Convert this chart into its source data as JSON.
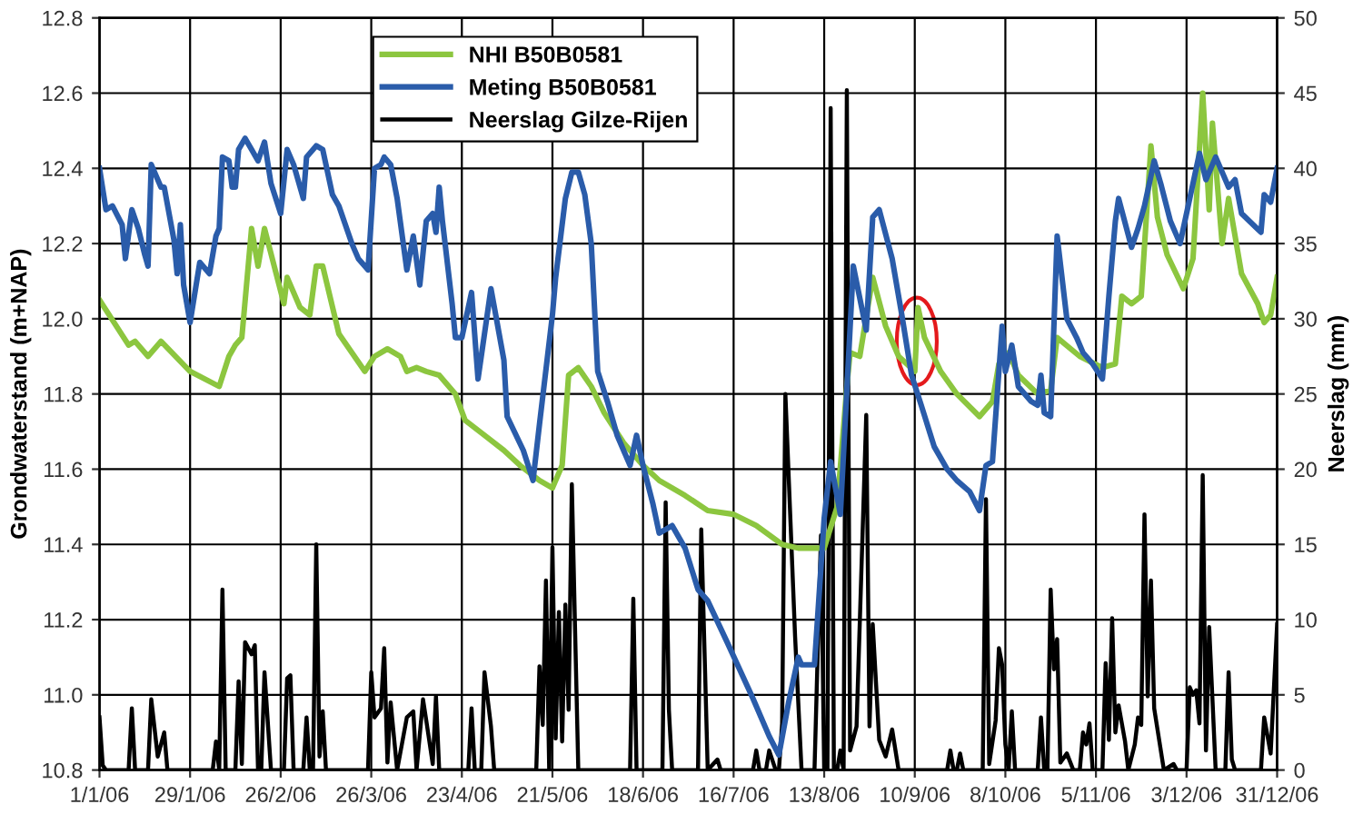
{
  "chart_data": {
    "type": "line",
    "ylabel": "Grondwaterstand (m+NAP)",
    "y2label": "Neerslag (mm)",
    "xlim": [
      "2006-01-01",
      "2006-12-31"
    ],
    "xticks": [
      {
        "value": "2006-01-01",
        "label": "1/1/06"
      },
      {
        "value": "2006-01-29",
        "label": "29/1/06"
      },
      {
        "value": "2006-02-26",
        "label": "26/2/06"
      },
      {
        "value": "2006-03-26",
        "label": "26/3/06"
      },
      {
        "value": "2006-04-23",
        "label": "23/4/06"
      },
      {
        "value": "2006-05-21",
        "label": "21/5/06"
      },
      {
        "value": "2006-06-18",
        "label": "18/6/06"
      },
      {
        "value": "2006-07-16",
        "label": "16/7/06"
      },
      {
        "value": "2006-08-13",
        "label": "13/8/06"
      },
      {
        "value": "2006-09-10",
        "label": "10/9/06"
      },
      {
        "value": "2006-10-08",
        "label": "8/10/06"
      },
      {
        "value": "2006-11-05",
        "label": "5/11/06"
      },
      {
        "value": "2006-12-03",
        "label": "3/12/06"
      },
      {
        "value": "2006-12-31",
        "label": "31/12/06"
      }
    ],
    "ylim": [
      10.8,
      12.8
    ],
    "yticks": [
      10.8,
      {
        "value": 11,
        "label": "11.0"
      },
      11.2,
      11.4,
      11.6,
      11.8,
      {
        "value": 12,
        "label": "12.0"
      },
      12.2,
      12.4,
      12.6,
      12.8
    ],
    "y2lim": [
      0,
      50
    ],
    "y2ticks": [
      0,
      5,
      10,
      15,
      20,
      25,
      30,
      35,
      40,
      45,
      50
    ],
    "grid": true,
    "legend": "top",
    "marker": "none",
    "line_style": "solid",
    "series": [
      {
        "name": "NHI B50B0581",
        "color": "#8cc63f",
        "x": [
          "2006-01-01",
          "2006-01-10",
          "2006-01-12",
          "2006-01-16",
          "2006-01-20",
          "2006-01-29",
          "2006-02-07",
          "2006-02-10",
          "2006-02-12",
          "2006-02-14",
          "2006-02-17",
          "2006-02-19",
          "2006-02-21",
          "2006-02-27",
          "2006-02-28",
          "2006-03-04",
          "2006-03-07",
          "2006-03-09",
          "2006-03-11",
          "2006-03-16",
          "2006-03-24",
          "2006-03-27",
          "2006-03-31",
          "2006-04-04",
          "2006-04-06",
          "2006-04-09",
          "2006-04-12",
          "2006-04-16",
          "2006-04-21",
          "2006-04-24",
          "2006-04-30",
          "2006-05-06",
          "2006-05-11",
          "2006-05-17",
          "2006-05-21",
          "2006-05-24",
          "2006-05-26",
          "2006-05-29",
          "2006-06-02",
          "2006-06-06",
          "2006-06-12",
          "2006-06-18",
          "2006-06-23",
          "2006-07-01",
          "2006-07-08",
          "2006-07-16",
          "2006-07-23",
          "2006-07-31",
          "2006-08-05",
          "2006-08-13",
          "2006-08-17",
          "2006-08-20",
          "2006-08-21",
          "2006-08-24",
          "2006-08-28",
          "2006-09-01",
          "2006-09-05",
          "2006-09-10",
          "2006-09-11",
          "2006-09-13",
          "2006-09-18",
          "2006-09-23",
          "2006-09-30",
          "2006-10-04",
          "2006-10-06",
          "2006-10-09",
          "2006-10-12",
          "2006-10-18",
          "2006-10-22",
          "2006-10-24",
          "2006-10-31",
          "2006-11-07",
          "2006-11-11",
          "2006-11-13",
          "2006-11-16",
          "2006-11-19",
          "2006-11-22",
          "2006-11-24",
          "2006-11-27",
          "2006-12-02",
          "2006-12-05",
          "2006-12-08",
          "2006-12-10",
          "2006-12-11",
          "2006-12-14",
          "2006-12-16",
          "2006-12-20",
          "2006-12-25",
          "2006-12-27",
          "2006-12-29",
          "2006-12-31"
        ],
        "values": [
          12.05,
          11.93,
          11.94,
          11.9,
          11.94,
          11.86,
          11.82,
          11.9,
          11.93,
          11.95,
          12.24,
          12.14,
          12.24,
          12.04,
          12.11,
          12.03,
          12.01,
          12.14,
          12.14,
          11.96,
          11.86,
          11.9,
          11.92,
          11.9,
          11.86,
          11.87,
          11.86,
          11.85,
          11.8,
          11.73,
          11.69,
          11.65,
          11.61,
          11.57,
          11.55,
          11.61,
          11.85,
          11.87,
          11.82,
          11.75,
          11.67,
          11.61,
          11.57,
          11.53,
          11.49,
          11.48,
          11.45,
          11.4,
          11.39,
          11.39,
          11.5,
          11.82,
          11.91,
          11.9,
          12.11,
          11.98,
          11.9,
          11.86,
          12.03,
          11.95,
          11.86,
          11.8,
          11.74,
          11.78,
          11.88,
          11.91,
          11.85,
          11.8,
          11.81,
          11.95,
          11.9,
          11.87,
          11.88,
          12.06,
          12.04,
          12.06,
          12.46,
          12.27,
          12.17,
          12.08,
          12.16,
          12.6,
          12.29,
          12.52,
          12.2,
          12.32,
          12.12,
          12.04,
          11.99,
          12.01,
          12.11
        ]
      },
      {
        "name": "Meting B50B0581",
        "color": "#2a5caa",
        "x": [
          "2006-01-01",
          "2006-01-03",
          "2006-01-05",
          "2006-01-08",
          "2006-01-09",
          "2006-01-11",
          "2006-01-13",
          "2006-01-15",
          "2006-01-16",
          "2006-01-17",
          "2006-01-20",
          "2006-01-21",
          "2006-01-24",
          "2006-01-25",
          "2006-01-26",
          "2006-01-27",
          "2006-01-29",
          "2006-02-01",
          "2006-02-04",
          "2006-02-06",
          "2006-02-07",
          "2006-02-08",
          "2006-02-10",
          "2006-02-11",
          "2006-02-12",
          "2006-02-13",
          "2006-02-15",
          "2006-02-17",
          "2006-02-19",
          "2006-02-21",
          "2006-02-23",
          "2006-02-26",
          "2006-02-28",
          "2006-03-02",
          "2006-03-05",
          "2006-03-06",
          "2006-03-09",
          "2006-03-11",
          "2006-03-14",
          "2006-03-16",
          "2006-03-20",
          "2006-03-22",
          "2006-03-25",
          "2006-03-27",
          "2006-03-29",
          "2006-03-30",
          "2006-04-01",
          "2006-04-03",
          "2006-04-06",
          "2006-04-08",
          "2006-04-10",
          "2006-04-12",
          "2006-04-14",
          "2006-04-15",
          "2006-04-16",
          "2006-04-17",
          "2006-04-20",
          "2006-04-21",
          "2006-04-23",
          "2006-04-26",
          "2006-04-28",
          "2006-05-02",
          "2006-05-06",
          "2006-05-07",
          "2006-05-12",
          "2006-05-15",
          "2006-05-17",
          "2006-05-21",
          "2006-05-22",
          "2006-05-25",
          "2006-05-27",
          "2006-05-29",
          "2006-05-31",
          "2006-06-02",
          "2006-06-04",
          "2006-06-07",
          "2006-06-10",
          "2006-06-14",
          "2006-06-16",
          "2006-06-18",
          "2006-06-21",
          "2006-06-23",
          "2006-06-27",
          "2006-07-01",
          "2006-07-05",
          "2006-07-08",
          "2006-07-14",
          "2006-07-22",
          "2006-07-27",
          "2006-07-30",
          "2006-08-02",
          "2006-08-05",
          "2006-08-06",
          "2006-08-10",
          "2006-08-13",
          "2006-08-15",
          "2006-08-18",
          "2006-08-22",
          "2006-08-26",
          "2006-08-28",
          "2006-08-30",
          "2006-09-03",
          "2006-09-06",
          "2006-09-09",
          "2006-09-12",
          "2006-09-16",
          "2006-09-20",
          "2006-09-23",
          "2006-09-27",
          "2006-09-30",
          "2006-10-02",
          "2006-10-04",
          "2006-10-07",
          "2006-10-08",
          "2006-10-10",
          "2006-10-12",
          "2006-10-16",
          "2006-10-18",
          "2006-10-19",
          "2006-10-20",
          "2006-10-22",
          "2006-10-24",
          "2006-10-27",
          "2006-10-30",
          "2006-11-01",
          "2006-11-04",
          "2006-11-07",
          "2006-11-09",
          "2006-11-11",
          "2006-11-12",
          "2006-11-16",
          "2006-11-18",
          "2006-11-20",
          "2006-11-23",
          "2006-11-25",
          "2006-11-28",
          "2006-12-01",
          "2006-12-04",
          "2006-12-07",
          "2006-12-09",
          "2006-12-12",
          "2006-12-16",
          "2006-12-18",
          "2006-12-20",
          "2006-12-26",
          "2006-12-27",
          "2006-12-29",
          "2006-12-31"
        ],
        "values": [
          12.4,
          12.29,
          12.3,
          12.25,
          12.16,
          12.29,
          12.24,
          12.17,
          12.14,
          12.41,
          12.35,
          12.35,
          12.21,
          12.12,
          12.25,
          12.09,
          11.99,
          12.15,
          12.12,
          12.22,
          12.24,
          12.43,
          12.42,
          12.35,
          12.35,
          12.45,
          12.48,
          12.45,
          12.42,
          12.47,
          12.36,
          12.28,
          12.45,
          12.41,
          12.32,
          12.43,
          12.46,
          12.45,
          12.33,
          12.3,
          12.2,
          12.16,
          12.13,
          12.4,
          12.41,
          12.43,
          12.41,
          12.32,
          12.13,
          12.22,
          12.09,
          12.26,
          12.28,
          12.23,
          12.35,
          12.26,
          12.04,
          11.95,
          11.95,
          12.07,
          11.84,
          12.08,
          11.89,
          11.74,
          11.65,
          11.57,
          11.72,
          12.01,
          12.11,
          12.32,
          12.39,
          12.39,
          12.33,
          12.2,
          11.86,
          11.78,
          11.69,
          11.61,
          11.69,
          11.61,
          11.51,
          11.43,
          11.45,
          11.39,
          11.28,
          11.25,
          11.14,
          10.99,
          10.89,
          10.84,
          10.98,
          11.1,
          11.08,
          11.08,
          11.47,
          11.62,
          11.48,
          12.14,
          11.97,
          12.27,
          12.29,
          12.16,
          12.01,
          11.85,
          11.77,
          11.66,
          11.6,
          11.57,
          11.54,
          11.49,
          11.61,
          11.62,
          11.98,
          11.86,
          11.93,
          11.82,
          11.78,
          11.77,
          11.85,
          11.75,
          11.74,
          12.22,
          12.0,
          11.95,
          11.91,
          11.88,
          11.84,
          12.06,
          12.26,
          12.32,
          12.19,
          12.24,
          12.3,
          12.42,
          12.36,
          12.26,
          12.2,
          12.32,
          12.44,
          12.37,
          12.43,
          12.35,
          12.37,
          12.28,
          12.23,
          12.33,
          12.31,
          12.4
        ]
      },
      {
        "name": "Neerslag Gilze-Rijen",
        "color": "#000000",
        "axis": "y2",
        "x": [
          "2006-01-01",
          "2006-01-02",
          "2006-01-03",
          "2006-01-10",
          "2006-01-11",
          "2006-01-12",
          "2006-01-16",
          "2006-01-17",
          "2006-01-19",
          "2006-01-21",
          "2006-01-22",
          "2006-02-05",
          "2006-02-06",
          "2006-02-07",
          "2006-02-08",
          "2006-02-09",
          "2006-02-12",
          "2006-02-13",
          "2006-02-14",
          "2006-02-15",
          "2006-02-17",
          "2006-02-18",
          "2006-02-19",
          "2006-02-20",
          "2006-02-21",
          "2006-02-23",
          "2006-02-27",
          "2006-02-28",
          "2006-03-01",
          "2006-03-02",
          "2006-03-05",
          "2006-03-06",
          "2006-03-07",
          "2006-03-08",
          "2006-03-09",
          "2006-03-10",
          "2006-03-11",
          "2006-03-12",
          "2006-03-25",
          "2006-03-26",
          "2006-03-27",
          "2006-03-29",
          "2006-03-30",
          "2006-03-31",
          "2006-04-01",
          "2006-04-03",
          "2006-04-06",
          "2006-04-08",
          "2006-04-09",
          "2006-04-11",
          "2006-04-12",
          "2006-04-14",
          "2006-04-15",
          "2006-04-16",
          "2006-04-25",
          "2006-04-26",
          "2006-04-27",
          "2006-04-29",
          "2006-04-30",
          "2006-05-02",
          "2006-05-03",
          "2006-05-16",
          "2006-05-17",
          "2006-05-18",
          "2006-05-19",
          "2006-05-20",
          "2006-05-21",
          "2006-05-22",
          "2006-05-23",
          "2006-05-24",
          "2006-05-25",
          "2006-05-26",
          "2006-05-27",
          "2006-05-28",
          "2006-05-29",
          "2006-06-14",
          "2006-06-15",
          "2006-06-16",
          "2006-06-24",
          "2006-06-25",
          "2006-06-26",
          "2006-06-27",
          "2006-07-05",
          "2006-07-06",
          "2006-07-08",
          "2006-07-11",
          "2006-07-12",
          "2006-07-22",
          "2006-07-23",
          "2006-07-24",
          "2006-07-26",
          "2006-07-27",
          "2006-07-29",
          "2006-07-30",
          "2006-07-31",
          "2006-08-01",
          "2006-08-04",
          "2006-08-06",
          "2006-08-10",
          "2006-08-12",
          "2006-08-13",
          "2006-08-14",
          "2006-08-15",
          "2006-08-16",
          "2006-08-17",
          "2006-08-18",
          "2006-08-19",
          "2006-08-20",
          "2006-08-21",
          "2006-08-23",
          "2006-08-26",
          "2006-08-27",
          "2006-08-28",
          "2006-08-30",
          "2006-09-01",
          "2006-09-03",
          "2006-09-05",
          "2006-09-20",
          "2006-09-21",
          "2006-09-22",
          "2006-09-23",
          "2006-09-24",
          "2006-09-25",
          "2006-10-01",
          "2006-10-02",
          "2006-10-03",
          "2006-10-05",
          "2006-10-06",
          "2006-10-07",
          "2006-10-08",
          "2006-10-09",
          "2006-10-10",
          "2006-10-11",
          "2006-10-18",
          "2006-10-19",
          "2006-10-20",
          "2006-10-21",
          "2006-10-22",
          "2006-10-23",
          "2006-10-24",
          "2006-10-25",
          "2006-10-27",
          "2006-10-29",
          "2006-10-31",
          "2006-11-01",
          "2006-11-02",
          "2006-11-03",
          "2006-11-04",
          "2006-11-07",
          "2006-11-08",
          "2006-11-09",
          "2006-11-10",
          "2006-11-11",
          "2006-11-12",
          "2006-11-14",
          "2006-11-15",
          "2006-11-17",
          "2006-11-18",
          "2006-11-19",
          "2006-11-20",
          "2006-11-21",
          "2006-11-22",
          "2006-11-23",
          "2006-11-26",
          "2006-11-29",
          "2006-11-30",
          "2006-12-03",
          "2006-12-04",
          "2006-12-05",
          "2006-12-06",
          "2006-12-07",
          "2006-12-08",
          "2006-12-09",
          "2006-12-10",
          "2006-12-12",
          "2006-12-15",
          "2006-12-16",
          "2006-12-17",
          "2006-12-18",
          "2006-12-26",
          "2006-12-27",
          "2006-12-29",
          "2006-12-31"
        ],
        "values": [
          3.5,
          0.3,
          0,
          0,
          4.1,
          0,
          0,
          4.7,
          0.9,
          2.5,
          0,
          0,
          1.9,
          0,
          12.0,
          0,
          0,
          5.9,
          0.4,
          8.5,
          7.7,
          8.3,
          0,
          0,
          6.5,
          0,
          0,
          6.1,
          6.3,
          0,
          0,
          3.5,
          0,
          0,
          15.0,
          0.9,
          3.9,
          0,
          0,
          6.5,
          3.5,
          4.1,
          8.1,
          0.5,
          4.5,
          0,
          3.5,
          3.9,
          0,
          4.7,
          3.3,
          0.4,
          4.9,
          0,
          0,
          4.1,
          0,
          0,
          6.5,
          2.9,
          0,
          0,
          6.9,
          3,
          12.6,
          0,
          14.8,
          2.1,
          10.5,
          1.9,
          11.0,
          4,
          19.0,
          9.3,
          0,
          0,
          11.4,
          0,
          0,
          17.8,
          4,
          0,
          0,
          16.0,
          0,
          0.7,
          0,
          0,
          1.3,
          0,
          0,
          1.3,
          0,
          0,
          3.1,
          25.0,
          8.9,
          0,
          0,
          15.6,
          0,
          0,
          44.0,
          0,
          0,
          1.3,
          0,
          45.2,
          1.3,
          2.9,
          23.6,
          2.9,
          9.7,
          2,
          0.9,
          2.7,
          0,
          0,
          1.3,
          0,
          0,
          1.1,
          0,
          0,
          18.0,
          0.4,
          3.3,
          8.1,
          7,
          1.7,
          0,
          3.9,
          0,
          0,
          3.5,
          0,
          0,
          12.0,
          6.7,
          8.7,
          0.5,
          1.1,
          0,
          0,
          2.5,
          1.7,
          3.1,
          0,
          0,
          7.1,
          2,
          10.1,
          2.5,
          4.3,
          1.9,
          0,
          1.7,
          3.5,
          3,
          17.0,
          4.9,
          12.6,
          4.1,
          0,
          0.4,
          0,
          0,
          5.5,
          5,
          5.3,
          3.1,
          19.6,
          1.3,
          9.5,
          0,
          0,
          6.5,
          0.7,
          0,
          0,
          3.5,
          1.1,
          9.7
        ]
      }
    ]
  }
}
